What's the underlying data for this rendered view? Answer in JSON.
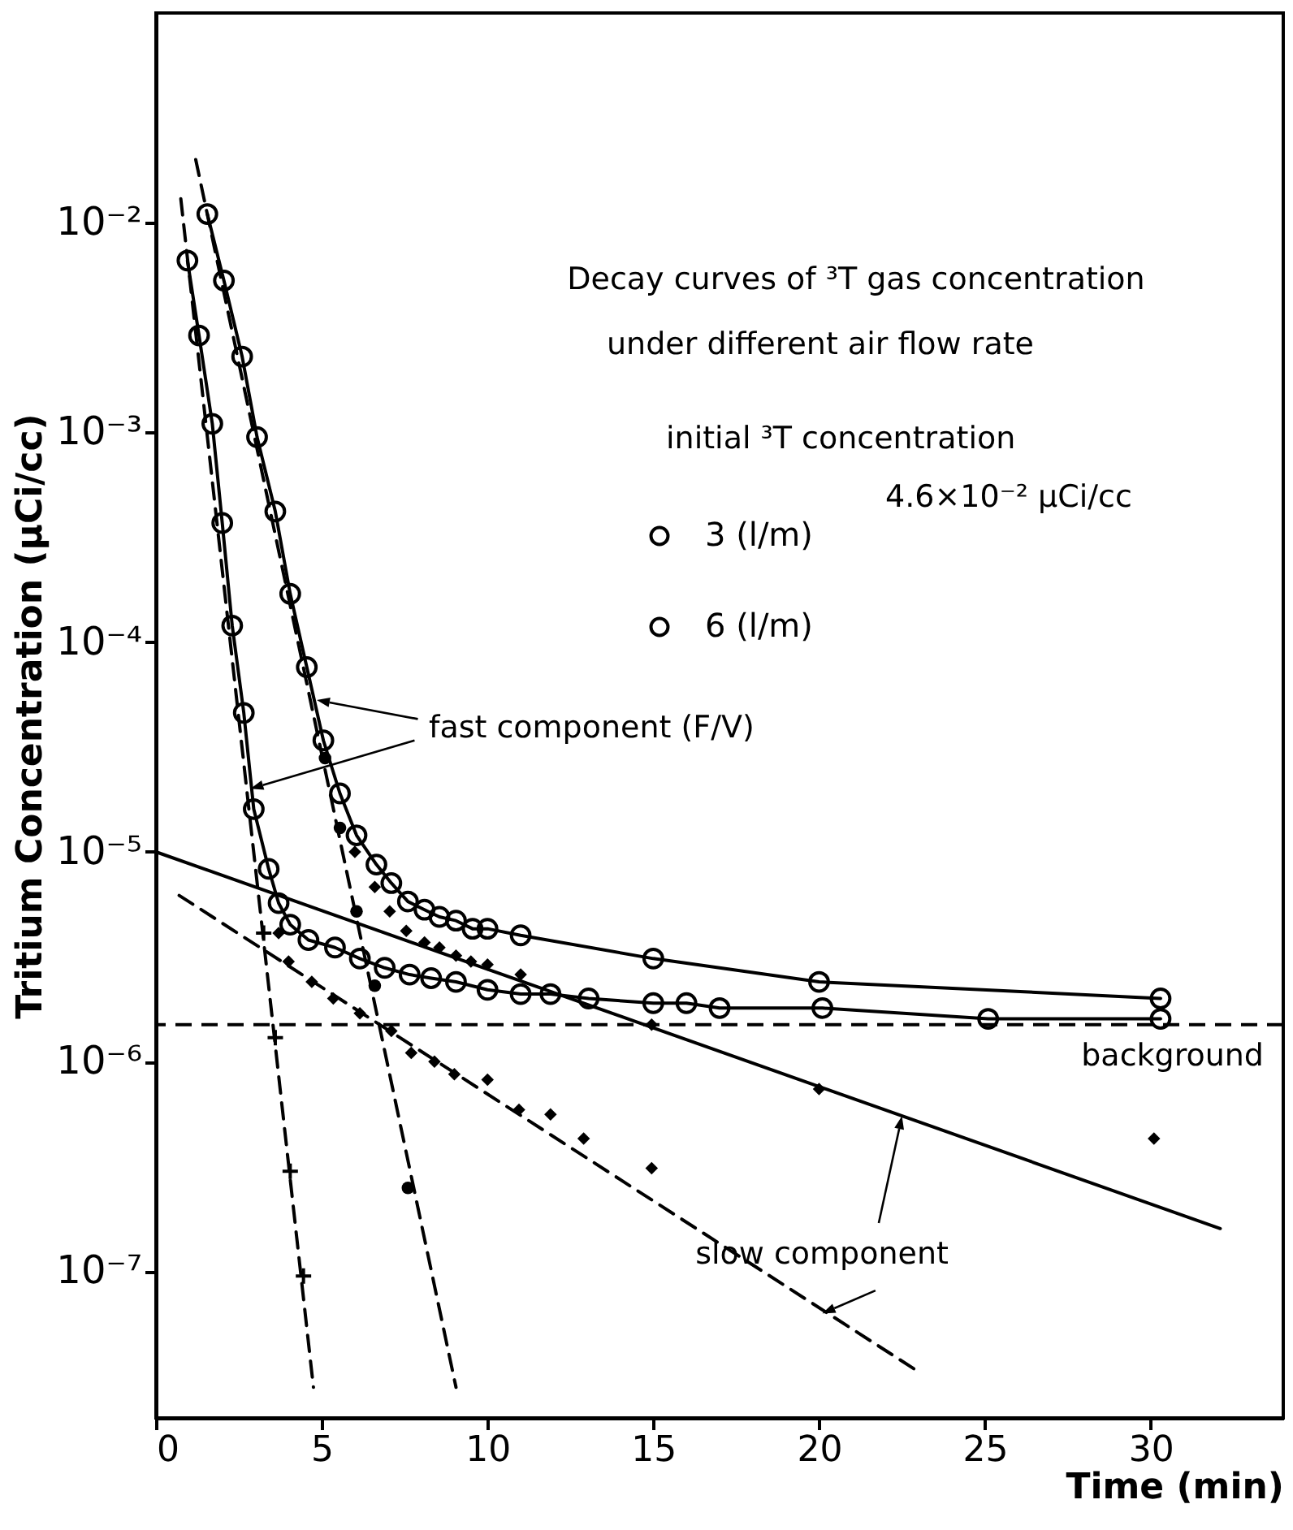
{
  "chart_data": {
    "type": "line",
    "title": "Decay curves of ³T gas concentration",
    "subtitle": "under different air flow rate",
    "xlabel": "Time (min)",
    "ylabel": "Tritium Concentration (μCi/cc)",
    "xlim": [
      0,
      34
    ],
    "xticks": [
      0,
      5,
      10,
      15,
      20,
      25,
      30
    ],
    "ylim": [
      2e-08,
      0.1
    ],
    "yticks": [
      {
        "value": 1e-07,
        "label": "10⁻⁷"
      },
      {
        "value": 1e-06,
        "label": "10⁻⁶"
      },
      {
        "value": 1e-05,
        "label": "10⁻⁵"
      },
      {
        "value": 0.0001,
        "label": "10⁻⁴"
      },
      {
        "value": 0.001,
        "label": "10⁻³"
      },
      {
        "value": 0.01,
        "label": "10⁻²"
      }
    ],
    "log": "y",
    "legend": "top right",
    "series": [
      {
        "name": "3 (l/m)",
        "marker": "circle",
        "color": "#000000",
        "x": [
          1.55,
          2.05,
          2.6,
          3.05,
          3.6,
          4.05,
          4.55,
          5.05,
          5.55,
          6.05,
          6.65,
          7.1,
          7.6,
          8.1,
          8.55,
          9.05,
          9.55,
          10,
          11,
          15,
          20,
          30.3
        ],
        "values": [
          0.011,
          0.0053,
          0.0023,
          0.00095,
          0.00042,
          0.00017,
          7.6e-05,
          3.4e-05,
          1.9e-05,
          1.2e-05,
          8.7e-06,
          7.1e-06,
          5.8e-06,
          5.3e-06,
          4.9e-06,
          4.7e-06,
          4.3e-06,
          4.3e-06,
          4e-06,
          3.1e-06,
          2.4e-06,
          2e-06
        ]
      },
      {
        "name": "6 (l/m)",
        "marker": "circle",
        "color": "#000000",
        "x": [
          0.95,
          1.3,
          1.7,
          2.0,
          2.3,
          2.65,
          2.95,
          3.4,
          3.7,
          4.05,
          4.6,
          5.4,
          6.15,
          6.9,
          7.65,
          8.3,
          9.05,
          10,
          11,
          11.9,
          13.05,
          15,
          16,
          17,
          20.1,
          25.1,
          30.3
        ],
        "values": [
          0.0066,
          0.0029,
          0.0011,
          0.00037,
          0.00012,
          4.6e-05,
          1.6e-05,
          8.3e-06,
          5.7e-06,
          4.5e-06,
          3.8e-06,
          3.5e-06,
          3.1e-06,
          2.8e-06,
          2.6e-06,
          2.5e-06,
          2.4e-06,
          2.2e-06,
          2.1e-06,
          2.1e-06,
          2e-06,
          1.9e-06,
          1.9e-06,
          1.8e-06,
          1.8e-06,
          1.6e-06,
          1.6e-06
        ]
      },
      {
        "type": "scatter",
        "marker": "cross",
        "color": "#000000",
        "x": [
          3.25,
          3.6,
          4.05,
          4.45
        ],
        "values": [
          4.1e-06,
          1.3e-06,
          3e-07,
          9.5e-08
        ]
      },
      {
        "type": "scatter",
        "marker": "circle",
        "color": "#000000",
        "x": [
          5.1,
          5.55,
          6.05,
          6.6,
          7.6
        ],
        "values": [
          2.8e-05,
          1.3e-05,
          5.2e-06,
          2.3e-06,
          2.5e-07
        ]
      },
      {
        "type": "scatter",
        "marker": "diamond",
        "color": "#000000",
        "x": [
          6.0,
          6.6,
          7.05,
          7.55,
          8.1,
          8.55,
          9.05,
          9.5,
          10,
          11,
          14.95,
          20,
          30.1
        ],
        "values": [
          1e-05,
          6.8e-06,
          5.2e-06,
          4.2e-06,
          3.7e-06,
          3.5e-06,
          3.2e-06,
          3e-06,
          2.9e-06,
          2.6e-06,
          1.5e-06,
          7.4e-07,
          4.3e-07
        ]
      },
      {
        "type": "scatter",
        "marker": "diamond",
        "color": "#000000",
        "x": [
          3.7,
          4.0,
          4.7,
          5.35,
          6.15,
          7.1,
          7.7,
          8.4,
          9.0,
          10,
          10.95,
          11.9,
          12.9,
          14.95
        ],
        "values": [
          4.1e-06,
          3e-06,
          2.4e-06,
          2e-06,
          1.7e-06,
          1.4e-06,
          1.1e-06,
          1e-06,
          8.7e-07,
          8.2e-07,
          5.9e-07,
          5.6e-07,
          4.3e-07,
          3.1e-07
        ]
      },
      {
        "type": "line",
        "marker": "none",
        "line_style": "dashed",
        "color": "#000000",
        "x": [
          1.2,
          9.05
        ],
        "values": [
          0.02,
          2.8e-08
        ]
      },
      {
        "type": "line",
        "marker": "none",
        "line_style": "dashed",
        "color": "#000000",
        "x": [
          0.75,
          4.75
        ],
        "values": [
          0.013,
          2.8e-08
        ]
      },
      {
        "type": "line",
        "marker": "none",
        "line_style": "solid",
        "color": "#000000",
        "x": [
          0,
          32.1
        ],
        "values": [
          1e-05,
          1.6e-07
        ]
      },
      {
        "type": "line",
        "marker": "none",
        "line_style": "dashed",
        "color": "#000000",
        "x": [
          0.7,
          22.9
        ],
        "values": [
          6.2e-06,
          3.4e-08
        ]
      }
    ],
    "ref_lines": [
      {
        "axis": "y",
        "value": 1.5e-06,
        "label": "background",
        "line_style": "dashed",
        "color": "#000000"
      }
    ],
    "annotations": [
      "fast component (F/V)",
      "slow component",
      "initial ³T concentration",
      "4.6×10⁻² μCi/cc"
    ]
  }
}
